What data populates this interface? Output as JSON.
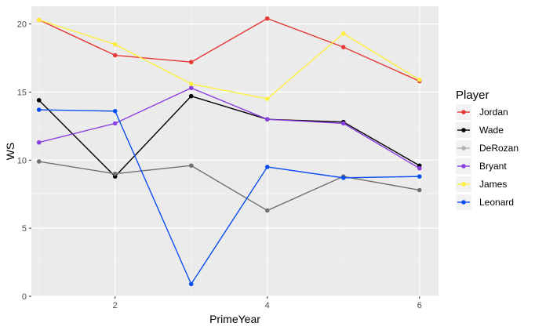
{
  "chart_data": {
    "type": "line",
    "xlabel": "PrimeYear",
    "ylabel": "WS",
    "xlim": [
      0.9,
      6.25
    ],
    "ylim": [
      0,
      21.3
    ],
    "x_ticks": [
      2,
      4,
      6
    ],
    "y_ticks": [
      0,
      5,
      10,
      15,
      20
    ],
    "grid": true,
    "legend": {
      "title": "Player",
      "placement": "right"
    },
    "x": [
      1,
      2,
      3,
      4,
      5,
      6
    ],
    "series": [
      {
        "name": "Jordan",
        "color": "#E53935",
        "values": [
          20.3,
          17.7,
          17.2,
          20.4,
          18.3,
          15.8
        ]
      },
      {
        "name": "Wade",
        "color": "#000000",
        "values": [
          14.4,
          8.8,
          14.7,
          13.0,
          12.8,
          9.6
        ]
      },
      {
        "name": "DeRozan",
        "color": "#707070",
        "values": [
          9.9,
          9.0,
          9.6,
          6.3,
          8.8,
          7.8
        ]
      },
      {
        "name": "Bryant",
        "color": "#8A3FE0",
        "values": [
          11.3,
          12.7,
          15.3,
          13.0,
          12.7,
          9.4
        ]
      },
      {
        "name": "James",
        "color": "#FFEF3F",
        "values": [
          20.3,
          18.5,
          15.6,
          14.5,
          19.3,
          15.9
        ]
      },
      {
        "name": "Leonard",
        "color": "#0A4FF0",
        "values": [
          13.7,
          13.6,
          0.9,
          9.5,
          8.7,
          8.8
        ]
      }
    ],
    "legend_colors": {
      "DeRozan": "#B3B3B3"
    }
  }
}
